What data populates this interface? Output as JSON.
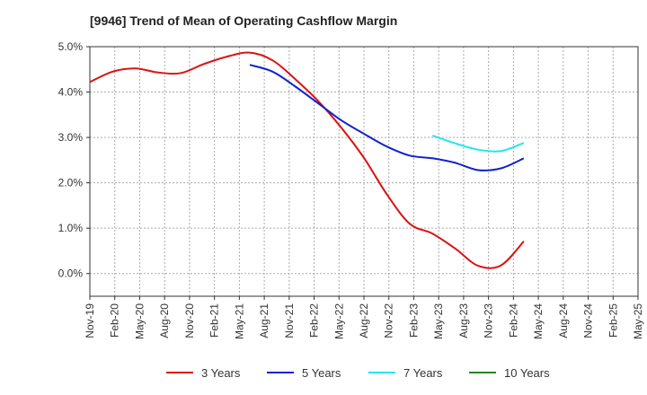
{
  "chart_data": {
    "type": "line",
    "title": "[9946]  Trend of Mean of Operating Cashflow Margin",
    "xlabel": "",
    "ylabel": "",
    "grid": true,
    "legend_position": "bottom",
    "ylim": [
      -0.5,
      5.0
    ],
    "yticks": [
      0.0,
      1.0,
      2.0,
      3.0,
      4.0,
      5.0
    ],
    "ytick_labels": [
      "0.0%",
      "1.0%",
      "2.0%",
      "3.0%",
      "4.0%",
      "5.0%"
    ],
    "tick_labels": [
      "Nov-19",
      "Feb-20",
      "May-20",
      "Aug-20",
      "Nov-20",
      "Feb-21",
      "May-21",
      "Aug-21",
      "Nov-21",
      "Feb-22",
      "May-22",
      "Aug-22",
      "Nov-22",
      "Feb-23",
      "May-23",
      "Aug-23",
      "Nov-23",
      "Feb-24",
      "May-24",
      "Aug-24",
      "Nov-24",
      "Feb-25",
      "May-25"
    ],
    "x_range_months": [
      0,
      72
    ],
    "series": [
      {
        "name": "3 Years",
        "color": "#dd1111",
        "x_months": [
          0,
          3,
          6,
          9,
          12,
          15,
          18,
          21,
          24,
          27,
          30,
          33,
          36,
          39,
          42,
          45,
          48,
          51,
          54,
          57
        ],
        "values": [
          4.22,
          4.45,
          4.52,
          4.43,
          4.42,
          4.62,
          4.78,
          4.87,
          4.7,
          4.28,
          3.8,
          3.22,
          2.55,
          1.75,
          1.1,
          0.88,
          0.55,
          0.17,
          0.18,
          0.71
        ]
      },
      {
        "name": "5 Years",
        "color": "#1122cc",
        "x_months": [
          21,
          24,
          27,
          30,
          33,
          36,
          39,
          42,
          45,
          48,
          51,
          54,
          57
        ],
        "values": [
          4.6,
          4.45,
          4.12,
          3.75,
          3.38,
          3.08,
          2.8,
          2.6,
          2.54,
          2.44,
          2.28,
          2.32,
          2.54
        ]
      },
      {
        "name": "7 Years",
        "color": "#22e5ee",
        "x_months": [
          45,
          48,
          51,
          54,
          57
        ],
        "values": [
          3.04,
          2.87,
          2.73,
          2.7,
          2.88
        ]
      },
      {
        "name": "10 Years",
        "color": "#228822",
        "x_months": [],
        "values": []
      }
    ]
  }
}
